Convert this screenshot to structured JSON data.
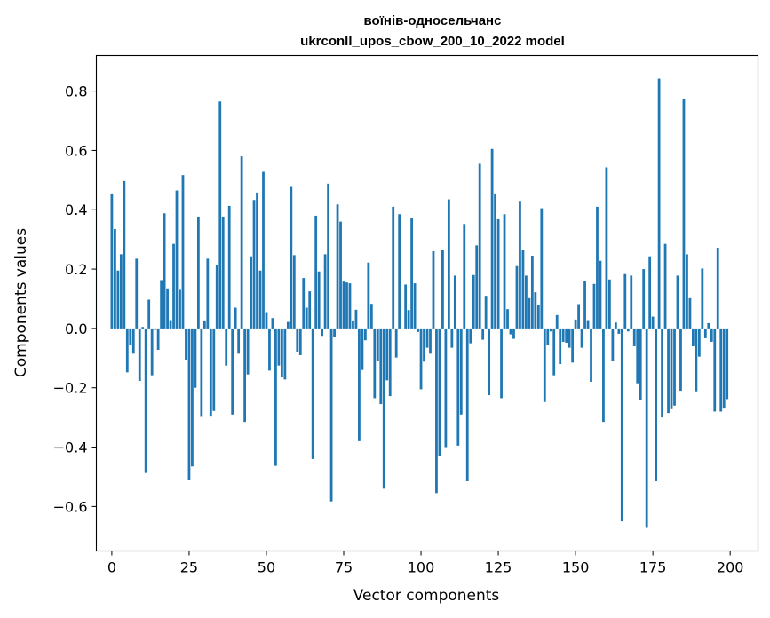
{
  "chart_data": {
    "type": "bar",
    "title": "воїнів-односельчанс",
    "subtitle": "ukrconll_upos_cbow_200_10_2022 model",
    "xlabel": "Vector components",
    "ylabel": "Components values",
    "xlim": [
      -5,
      209
    ],
    "ylim": [
      -0.75,
      0.92
    ],
    "xticks": [
      0,
      25,
      50,
      75,
      100,
      125,
      150,
      175,
      200
    ],
    "xtick_labels": [
      "0",
      "25",
      "50",
      "75",
      "100",
      "125",
      "150",
      "175",
      "200"
    ],
    "yticks": [
      -0.6,
      -0.4,
      -0.2,
      0.0,
      0.2,
      0.4,
      0.6,
      0.8
    ],
    "ytick_labels": [
      "−0.6",
      "−0.4",
      "−0.2",
      "0.0",
      "0.2",
      "0.4",
      "0.6",
      "0.8"
    ],
    "grid": false,
    "bar_color": "#1f77b4",
    "values": [
      0.455,
      0.335,
      0.195,
      0.25,
      0.497,
      -0.148,
      -0.055,
      -0.085,
      0.235,
      -0.177,
      0.005,
      -0.487,
      0.097,
      -0.158,
      -0.005,
      -0.072,
      0.163,
      0.388,
      0.135,
      0.028,
      0.285,
      0.465,
      0.13,
      0.517,
      -0.105,
      -0.512,
      -0.465,
      -0.2,
      0.377,
      -0.298,
      0.027,
      0.235,
      -0.297,
      -0.278,
      0.215,
      0.765,
      0.377,
      -0.125,
      0.413,
      -0.29,
      0.07,
      -0.085,
      0.58,
      -0.315,
      -0.155,
      0.243,
      0.433,
      0.458,
      0.195,
      0.528,
      0.055,
      -0.142,
      0.035,
      -0.463,
      -0.125,
      -0.165,
      -0.172,
      0.022,
      0.477,
      0.247,
      -0.078,
      -0.09,
      0.17,
      0.07,
      0.125,
      -0.44,
      0.38,
      0.192,
      -0.025,
      0.25,
      0.488,
      -0.583,
      -0.03,
      0.418,
      0.36,
      0.158,
      0.155,
      0.152,
      0.027,
      0.063,
      -0.38,
      -0.14,
      -0.04,
      0.222,
      0.083,
      -0.235,
      -0.11,
      -0.255,
      -0.54,
      -0.175,
      -0.228,
      0.41,
      -0.098,
      0.385,
      0.0,
      0.148,
      0.062,
      0.372,
      0.152,
      -0.012,
      -0.205,
      -0.112,
      -0.065,
      -0.085,
      0.26,
      -0.555,
      -0.43,
      0.265,
      -0.4,
      0.435,
      -0.065,
      0.178,
      -0.395,
      -0.29,
      0.352,
      -0.515,
      -0.05,
      0.18,
      0.28,
      0.555,
      -0.038,
      0.11,
      -0.225,
      0.605,
      0.455,
      0.368,
      -0.235,
      0.385,
      0.065,
      -0.02,
      -0.035,
      0.21,
      0.43,
      0.265,
      0.178,
      0.102,
      0.245,
      0.122,
      0.078,
      0.405,
      -0.248,
      -0.055,
      -0.01,
      -0.158,
      0.045,
      -0.12,
      -0.045,
      -0.048,
      -0.065,
      -0.115,
      0.03,
      0.082,
      -0.065,
      0.16,
      0.028,
      -0.18,
      0.15,
      0.41,
      0.228,
      -0.315,
      0.543,
      0.165,
      -0.108,
      0.02,
      -0.018,
      -0.65,
      0.183,
      -0.01,
      0.178,
      -0.06,
      -0.185,
      -0.24,
      0.2,
      -0.672,
      0.243,
      0.04,
      -0.515,
      0.842,
      -0.3,
      0.285,
      -0.285,
      -0.272,
      -0.26,
      0.178,
      -0.21,
      0.775,
      0.25,
      0.102,
      -0.06,
      -0.212,
      -0.095,
      0.202,
      -0.033,
      0.018,
      -0.045,
      -0.28,
      0.272,
      -0.28,
      -0.27,
      -0.238
    ]
  }
}
